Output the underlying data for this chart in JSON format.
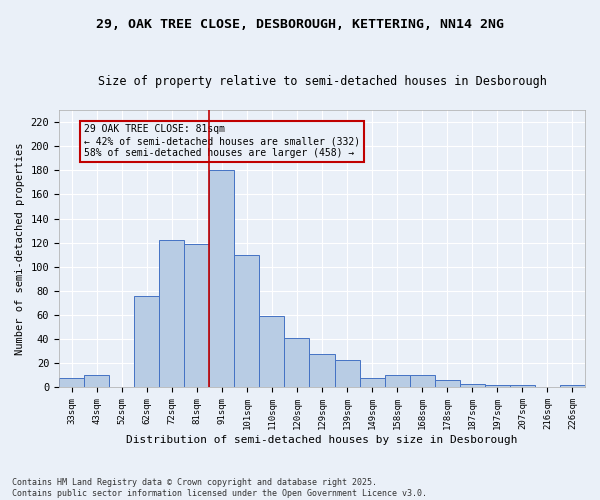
{
  "title1": "29, OAK TREE CLOSE, DESBOROUGH, KETTERING, NN14 2NG",
  "title2": "Size of property relative to semi-detached houses in Desborough",
  "xlabel": "Distribution of semi-detached houses by size in Desborough",
  "ylabel": "Number of semi-detached properties",
  "categories": [
    "33sqm",
    "43sqm",
    "52sqm",
    "62sqm",
    "72sqm",
    "81sqm",
    "91sqm",
    "101sqm",
    "110sqm",
    "120sqm",
    "129sqm",
    "139sqm",
    "149sqm",
    "158sqm",
    "168sqm",
    "178sqm",
    "187sqm",
    "197sqm",
    "207sqm",
    "216sqm",
    "226sqm"
  ],
  "values": [
    8,
    10,
    0,
    76,
    122,
    119,
    180,
    110,
    59,
    41,
    28,
    23,
    8,
    10,
    10,
    6,
    3,
    2,
    2,
    0,
    2
  ],
  "bar_color": "#b8cce4",
  "bar_edge_color": "#4472c4",
  "vline_x": 5.5,
  "vline_color": "#c00000",
  "annotation_text": "29 OAK TREE CLOSE: 81sqm\n← 42% of semi-detached houses are smaller (332)\n58% of semi-detached houses are larger (458) →",
  "annotation_box_color": "#c00000",
  "background_color": "#eaf0f8",
  "ylim": [
    0,
    230
  ],
  "yticks": [
    0,
    20,
    40,
    60,
    80,
    100,
    120,
    140,
    160,
    180,
    200,
    220
  ],
  "footer": "Contains HM Land Registry data © Crown copyright and database right 2025.\nContains public sector information licensed under the Open Government Licence v3.0.",
  "grid_color": "#ffffff"
}
